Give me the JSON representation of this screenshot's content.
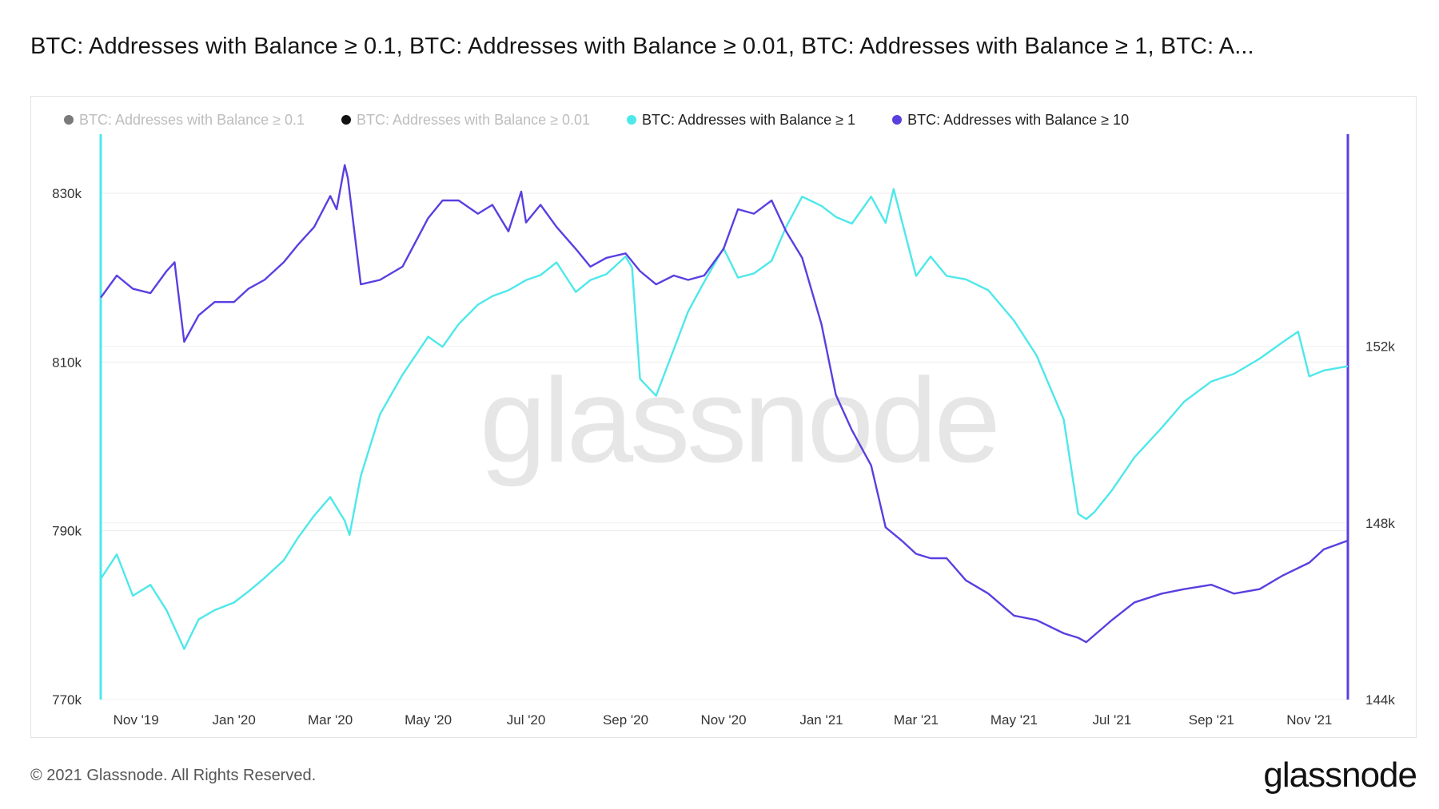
{
  "title": "BTC: Addresses with Balance ≥ 0.1, BTC: Addresses with Balance ≥ 0.01, BTC: Addresses with Balance ≥ 1, BTC: A...",
  "footer": "© 2021 Glassnode. All Rights Reserved.",
  "brand": "glassnode",
  "watermark": "glassnode",
  "legend": [
    {
      "label": "BTC: Addresses with Balance ≥ 0.1",
      "color": "#7a7a7a",
      "active": false
    },
    {
      "label": "BTC: Addresses with Balance ≥ 0.01",
      "color": "#111111",
      "active": false
    },
    {
      "label": "BTC: Addresses with Balance ≥ 1",
      "color": "#4ee8ea",
      "active": true
    },
    {
      "label": "BTC: Addresses with Balance ≥ 10",
      "color": "#5a3fe0",
      "active": true
    }
  ],
  "chart_data": {
    "type": "line",
    "title": "BTC: Addresses with Balance ≥ 0.1, BTC: Addresses with Balance ≥ 0.01, BTC: Addresses with Balance ≥ 1, BTC: A...",
    "x_ticks": [
      "Nov '19",
      "Jan '20",
      "Mar '20",
      "May '20",
      "Jul '20",
      "Sep '20",
      "Nov '20",
      "Jan '21",
      "Mar '21",
      "May '21",
      "Jul '21",
      "Sep '21",
      "Nov '21"
    ],
    "x_range": [
      "2019-10-10",
      "2021-11-25"
    ],
    "y_left": {
      "ticks": [
        "770k",
        "790k",
        "810k",
        "830k"
      ],
      "range": [
        770000,
        837000
      ],
      "series": "BTC: Addresses with Balance ≥ 1"
    },
    "y_right": {
      "ticks": [
        "144k",
        "148k",
        "152k"
      ],
      "range": [
        144000,
        156800
      ],
      "series": "BTC: Addresses with Balance ≥ 10"
    },
    "grid": true,
    "legend_position": "top-left",
    "series": [
      {
        "name": "BTC: Addresses with Balance ≥ 1",
        "color": "#4ee8ea",
        "axis": "left",
        "x": [
          "2019-10-10",
          "2019-10-20",
          "2019-10-30",
          "2019-11-10",
          "2019-11-20",
          "2019-12-01",
          "2019-12-10",
          "2019-12-20",
          "2020-01-01",
          "2020-01-10",
          "2020-01-20",
          "2020-02-01",
          "2020-02-10",
          "2020-02-20",
          "2020-03-01",
          "2020-03-10",
          "2020-03-13",
          "2020-03-20",
          "2020-04-01",
          "2020-04-15",
          "2020-05-01",
          "2020-05-10",
          "2020-05-20",
          "2020-06-01",
          "2020-06-10",
          "2020-06-20",
          "2020-07-01",
          "2020-07-10",
          "2020-07-20",
          "2020-08-01",
          "2020-08-10",
          "2020-08-20",
          "2020-09-01",
          "2020-09-05",
          "2020-09-10",
          "2020-09-20",
          "2020-10-01",
          "2020-10-10",
          "2020-10-20",
          "2020-11-01",
          "2020-11-10",
          "2020-11-20",
          "2020-12-01",
          "2020-12-10",
          "2020-12-20",
          "2021-01-01",
          "2021-01-10",
          "2021-01-20",
          "2021-02-01",
          "2021-02-10",
          "2021-02-15",
          "2021-03-01",
          "2021-03-10",
          "2021-03-20",
          "2021-04-01",
          "2021-04-15",
          "2021-05-01",
          "2021-05-15",
          "2021-06-01",
          "2021-06-10",
          "2021-06-15",
          "2021-06-20",
          "2021-07-01",
          "2021-07-15",
          "2021-08-01",
          "2021-08-15",
          "2021-09-01",
          "2021-09-15",
          "2021-10-01",
          "2021-10-15",
          "2021-10-25",
          "2021-11-01",
          "2021-11-10",
          "2021-11-25"
        ],
        "y": [
          784300,
          787200,
          782300,
          783600,
          780600,
          776000,
          779500,
          780600,
          781500,
          782800,
          784400,
          786500,
          789200,
          791800,
          794000,
          791200,
          789500,
          796500,
          803800,
          808500,
          813000,
          811800,
          814500,
          816800,
          817800,
          818500,
          819700,
          820300,
          821800,
          818300,
          819700,
          820400,
          822500,
          821200,
          808000,
          806000,
          811500,
          816000,
          819500,
          823500,
          820000,
          820500,
          822000,
          826000,
          829600,
          828500,
          827200,
          826400,
          829600,
          826500,
          830500,
          820200,
          822500,
          820200,
          819800,
          818500,
          814900,
          810800,
          803200,
          792000,
          791400,
          792200,
          794800,
          798700,
          802200,
          805300,
          807700,
          808600,
          810400,
          812300,
          813600,
          808300,
          809000,
          809500
        ]
      },
      {
        "name": "BTC: Addresses with Balance ≥ 10",
        "color": "#5a3fe0",
        "axis": "right",
        "x": [
          "2019-10-10",
          "2019-10-20",
          "2019-10-30",
          "2019-11-10",
          "2019-11-20",
          "2019-11-25",
          "2019-12-01",
          "2019-12-10",
          "2019-12-20",
          "2020-01-01",
          "2020-01-10",
          "2020-01-20",
          "2020-02-01",
          "2020-02-10",
          "2020-02-20",
          "2020-03-01",
          "2020-03-05",
          "2020-03-10",
          "2020-03-12",
          "2020-03-20",
          "2020-04-01",
          "2020-04-15",
          "2020-05-01",
          "2020-05-10",
          "2020-05-20",
          "2020-06-01",
          "2020-06-10",
          "2020-06-20",
          "2020-06-28",
          "2020-07-01",
          "2020-07-10",
          "2020-07-20",
          "2020-08-01",
          "2020-08-10",
          "2020-08-20",
          "2020-09-01",
          "2020-09-10",
          "2020-09-20",
          "2020-10-01",
          "2020-10-10",
          "2020-10-20",
          "2020-11-01",
          "2020-11-10",
          "2020-11-20",
          "2020-12-01",
          "2020-12-10",
          "2020-12-20",
          "2021-01-01",
          "2021-01-10",
          "2021-01-20",
          "2021-02-01",
          "2021-02-10",
          "2021-02-20",
          "2021-03-01",
          "2021-03-10",
          "2021-03-20",
          "2021-04-01",
          "2021-04-15",
          "2021-05-01",
          "2021-05-15",
          "2021-06-01",
          "2021-06-10",
          "2021-06-15",
          "2021-07-01",
          "2021-07-15",
          "2021-08-01",
          "2021-08-15",
          "2021-09-01",
          "2021-09-15",
          "2021-10-01",
          "2021-10-15",
          "2021-11-01",
          "2021-11-10",
          "2021-11-25"
        ],
        "y": [
          153100,
          153600,
          153300,
          153200,
          153700,
          153900,
          152100,
          152700,
          153000,
          153000,
          153300,
          153500,
          153900,
          154300,
          154700,
          155400,
          155100,
          156100,
          155800,
          153400,
          153500,
          153800,
          154900,
          155300,
          155300,
          155000,
          155200,
          154600,
          155500,
          154800,
          155200,
          154700,
          154200,
          153800,
          154000,
          154100,
          153700,
          153400,
          153600,
          153500,
          153600,
          154200,
          155100,
          155000,
          155300,
          154600,
          154000,
          152500,
          150900,
          150100,
          149300,
          147900,
          147600,
          147300,
          147200,
          147200,
          146700,
          146400,
          145900,
          145800,
          145500,
          145400,
          145300,
          145800,
          146200,
          146400,
          146500,
          146600,
          146400,
          146500,
          146800,
          147100,
          147400,
          147600
        ]
      }
    ]
  }
}
